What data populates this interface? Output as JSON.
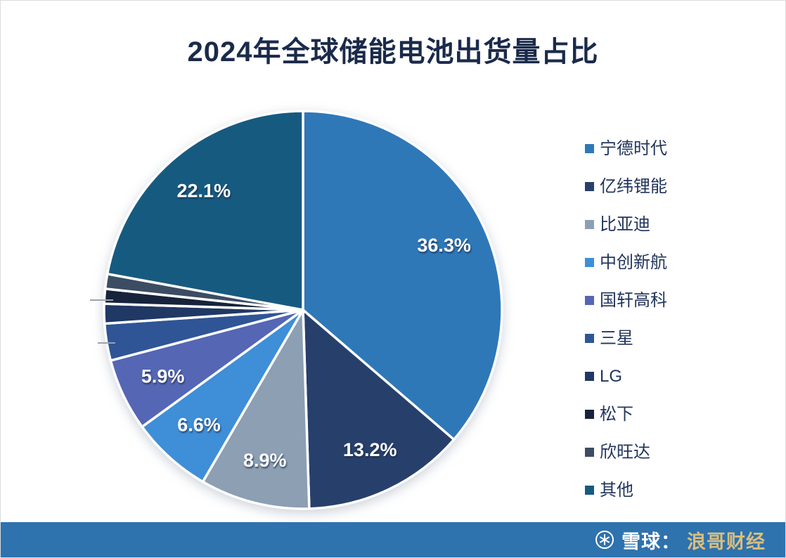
{
  "chart_data": {
    "type": "pie",
    "title": "2024年全球储能电池出货量占比",
    "label_format": "percent",
    "legend_position": "right",
    "start_angle_deg": 0,
    "direction": "clockwise",
    "label_min_value_shown": 5,
    "series": [
      {
        "name": "宁德时代",
        "value": 36.3,
        "color": "#2e78b8",
        "label": "36.3%"
      },
      {
        "name": "亿纬锂能",
        "value": 13.2,
        "color": "#27406b",
        "label": "13.2%"
      },
      {
        "name": "比亚迪",
        "value": 8.9,
        "color": "#8c9fb3",
        "label": "8.9%"
      },
      {
        "name": "中创新航",
        "value": 6.6,
        "color": "#3e8ed8",
        "label": "6.6%"
      },
      {
        "name": "国轩高科",
        "value": 5.9,
        "color": "#5566b5",
        "label": "5.9%"
      },
      {
        "name": "三星",
        "value": 3.0,
        "color": "#2f5597",
        "label": ""
      },
      {
        "name": "LG",
        "value": 1.6,
        "color": "#1f3864",
        "label": ""
      },
      {
        "name": "松下",
        "value": 1.2,
        "color": "#16233b",
        "label": ""
      },
      {
        "name": "欣旺达",
        "value": 1.2,
        "color": "#3c4c63",
        "label": ""
      },
      {
        "name": "其他",
        "value": 22.1,
        "color": "#175a80",
        "label": "22.1%"
      }
    ]
  },
  "footer": {
    "brand_prefix": "雪球：",
    "brand_name": "浪哥财经",
    "logo": "snowball-icon"
  }
}
